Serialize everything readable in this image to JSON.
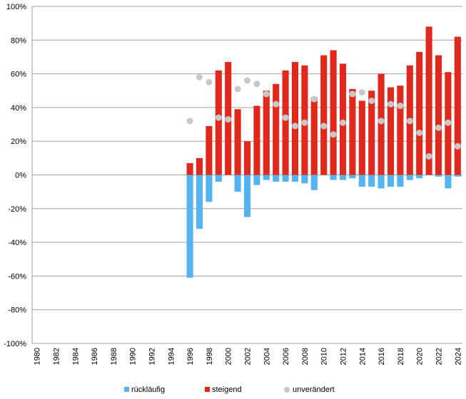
{
  "chart_data": {
    "type": "bar",
    "ylim": [
      -100,
      100
    ],
    "y_ticks": [
      "100%",
      "80%",
      "60%",
      "40%",
      "20%",
      "0%",
      "-20%",
      "-40%",
      "-60%",
      "-80%",
      "-100%"
    ],
    "x_start": 1980,
    "x_end": 2024,
    "x_tick_labels": [
      "1980",
      "1982",
      "1984",
      "1986",
      "1988",
      "1990",
      "1992",
      "1994",
      "1996",
      "1998",
      "2000",
      "2002",
      "2004",
      "2006",
      "2008",
      "2010",
      "2012",
      "2014",
      "2016",
      "2018",
      "2020",
      "2022",
      "2024"
    ],
    "grid": true,
    "legend_position": "bottom",
    "colors": {
      "rueckl": "#55b4f0",
      "steigend": "#e0281c",
      "unver": "#c8c8c8"
    },
    "series": [
      {
        "name": "rückläufig",
        "marker": "bar",
        "points": [
          [
            1996,
            -61
          ],
          [
            1997,
            -32
          ],
          [
            1998,
            -16
          ],
          [
            1999,
            -4
          ],
          [
            2000,
            0
          ],
          [
            2001,
            -10
          ],
          [
            2002,
            -25
          ],
          [
            2003,
            -6
          ],
          [
            2004,
            -3
          ],
          [
            2005,
            -4
          ],
          [
            2006,
            -4
          ],
          [
            2007,
            -4
          ],
          [
            2008,
            -5
          ],
          [
            2009,
            -9
          ],
          [
            2010,
            0
          ],
          [
            2011,
            -3
          ],
          [
            2012,
            -3
          ],
          [
            2013,
            -2
          ],
          [
            2014,
            -7
          ],
          [
            2015,
            -7
          ],
          [
            2016,
            -8
          ],
          [
            2017,
            -7
          ],
          [
            2018,
            -7
          ],
          [
            2019,
            -3
          ],
          [
            2020,
            -2
          ],
          [
            2021,
            0
          ],
          [
            2022,
            -1
          ],
          [
            2023,
            -8
          ],
          [
            2024,
            -1
          ]
        ]
      },
      {
        "name": "steigend",
        "marker": "bar",
        "points": [
          [
            1996,
            7
          ],
          [
            1997,
            10
          ],
          [
            1998,
            29
          ],
          [
            1999,
            62
          ],
          [
            2000,
            67
          ],
          [
            2001,
            39
          ],
          [
            2002,
            20
          ],
          [
            2003,
            41
          ],
          [
            2004,
            50
          ],
          [
            2005,
            54
          ],
          [
            2006,
            62
          ],
          [
            2007,
            67
          ],
          [
            2008,
            65
          ],
          [
            2009,
            46
          ],
          [
            2010,
            71
          ],
          [
            2011,
            74
          ],
          [
            2012,
            66
          ],
          [
            2013,
            51
          ],
          [
            2014,
            44
          ],
          [
            2015,
            50
          ],
          [
            2016,
            60
          ],
          [
            2017,
            52
          ],
          [
            2018,
            53
          ],
          [
            2019,
            65
          ],
          [
            2020,
            73
          ],
          [
            2021,
            88
          ],
          [
            2022,
            71
          ],
          [
            2023,
            61
          ],
          [
            2024,
            82
          ]
        ]
      },
      {
        "name": "unverändert",
        "marker": "point",
        "points": [
          [
            1996,
            32
          ],
          [
            1997,
            58
          ],
          [
            1998,
            55
          ],
          [
            1999,
            34
          ],
          [
            2000,
            33
          ],
          [
            2001,
            51
          ],
          [
            2002,
            56
          ],
          [
            2003,
            54
          ],
          [
            2004,
            48
          ],
          [
            2005,
            42
          ],
          [
            2006,
            34
          ],
          [
            2007,
            29
          ],
          [
            2008,
            31
          ],
          [
            2009,
            45
          ],
          [
            2010,
            29
          ],
          [
            2011,
            24
          ],
          [
            2012,
            31
          ],
          [
            2013,
            48
          ],
          [
            2014,
            49
          ],
          [
            2015,
            44
          ],
          [
            2016,
            32
          ],
          [
            2017,
            42
          ],
          [
            2018,
            41
          ],
          [
            2019,
            32
          ],
          [
            2020,
            25
          ],
          [
            2021,
            11
          ],
          [
            2022,
            28
          ],
          [
            2023,
            31
          ],
          [
            2024,
            17
          ]
        ]
      }
    ]
  }
}
